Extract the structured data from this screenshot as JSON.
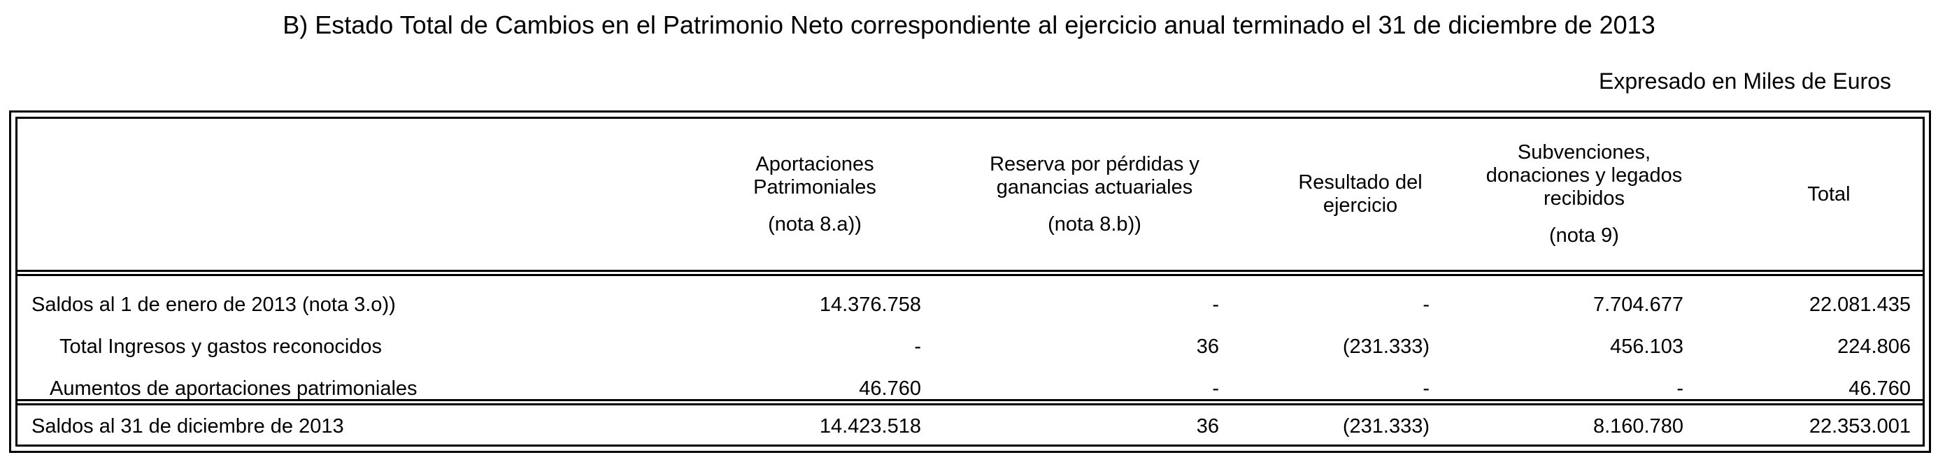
{
  "title": "B) Estado Total de Cambios en el Patrimonio Neto correspondiente al ejercicio anual terminado el 31 de diciembre de 2013",
  "units": "Expresado en Miles de Euros",
  "columns": [
    {
      "line1": "Aportaciones",
      "line2": "Patrimoniales",
      "line3": "",
      "note": "(nota 8.a))"
    },
    {
      "line1": "Reserva por pérdidas y",
      "line2": "ganancias actuariales",
      "line3": "",
      "note": "(nota 8.b))"
    },
    {
      "line1": "Resultado del",
      "line2": "ejercicio",
      "line3": "",
      "note": ""
    },
    {
      "line1": "Subvenciones,",
      "line2": "donaciones y legados",
      "line3": "recibidos",
      "note": "(nota 9)"
    },
    {
      "line1": "Total",
      "line2": "",
      "line3": "",
      "note": ""
    }
  ],
  "rows": [
    {
      "label": "Saldos al 1 de enero de 2013 (nota 3.o))",
      "values": [
        "14.376.758",
        "-",
        "-",
        "7.704.677",
        "22.081.435"
      ]
    },
    {
      "label": "Total Ingresos y gastos reconocidos",
      "values": [
        "-",
        "36",
        "(231.333)",
        "456.103",
        "224.806"
      ]
    },
    {
      "label": "Aumentos de aportaciones patrimoniales",
      "values": [
        "46.760",
        "-",
        "-",
        "-",
        "46.760"
      ]
    }
  ],
  "total_row": {
    "label": "Saldos al 31 de diciembre de 2013",
    "values": [
      "14.423.518",
      "36",
      "(231.333)",
      "8.160.780",
      "22.353.001"
    ]
  }
}
